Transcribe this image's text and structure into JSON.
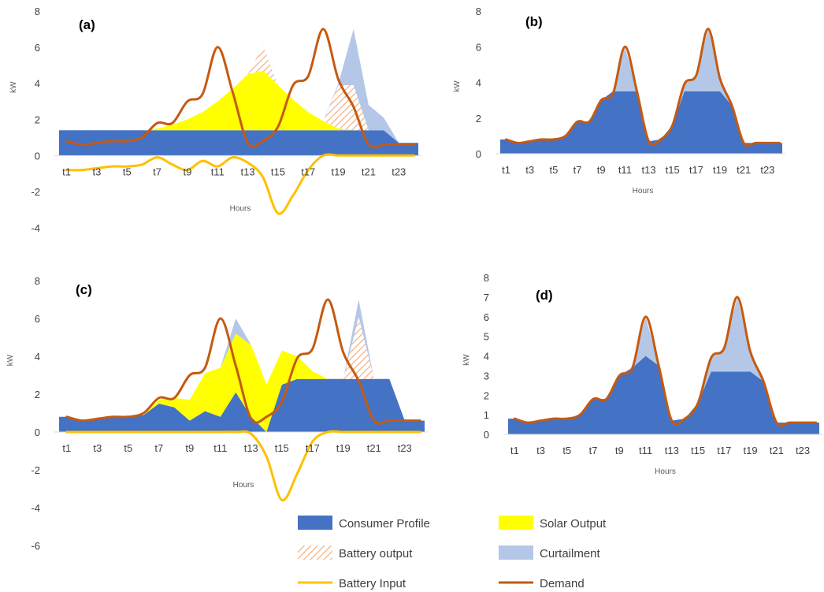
{
  "chart_data": [
    {
      "type": "area",
      "panel_label": "(a)",
      "xlabel": "Hours",
      "ylabel": "kW",
      "ylim": [
        -4,
        8
      ],
      "yticks": [
        -4,
        -2,
        0,
        2,
        4,
        6,
        8
      ],
      "x": [
        1,
        2,
        3,
        4,
        5,
        6,
        7,
        8,
        9,
        10,
        11,
        12,
        13,
        14,
        15,
        16,
        17,
        18,
        19,
        20,
        21,
        22,
        23,
        24
      ],
      "xtick_labels": [
        "t1",
        "t3",
        "t5",
        "t7",
        "t9",
        "t11",
        "t13",
        "t15",
        "t17",
        "t19",
        "t21",
        "t23"
      ],
      "series": [
        {
          "name": "Consumer Profile",
          "values": [
            1.4,
            1.4,
            1.4,
            1.4,
            1.4,
            1.4,
            1.4,
            1.4,
            1.4,
            1.4,
            1.4,
            1.4,
            1.4,
            1.4,
            1.4,
            1.4,
            1.4,
            1.4,
            1.4,
            1.4,
            1.4,
            1.4,
            0.7,
            0.7
          ]
        },
        {
          "name": "Solar Output",
          "values": [
            0,
            0,
            0,
            0,
            0,
            0,
            0.1,
            0.3,
            0.6,
            1.0,
            1.6,
            2.3,
            3.1,
            3.3,
            2.5,
            1.7,
            1.0,
            0.5,
            0.1,
            0,
            0,
            0,
            0,
            0
          ]
        },
        {
          "name": "Battery output",
          "values": [
            0,
            0,
            0,
            0,
            0,
            0,
            0,
            0,
            0,
            0,
            0,
            0,
            0,
            1.4,
            0,
            0,
            0,
            0,
            2.4,
            2.5,
            0,
            0,
            0,
            0
          ]
        },
        {
          "name": "Curtailment",
          "values": [
            0,
            0,
            0,
            0,
            0,
            0,
            0,
            0,
            0,
            0,
            0,
            0,
            0,
            0,
            0,
            0,
            0,
            0,
            0.1,
            3.1,
            1.4,
            0.7,
            0,
            0
          ]
        },
        {
          "name": "Battery Input",
          "values": [
            -0.8,
            -0.8,
            -0.7,
            -0.6,
            -0.6,
            -0.5,
            -0.1,
            -0.5,
            -0.8,
            -0.3,
            -0.6,
            -0.1,
            -0.4,
            -1.2,
            -3.2,
            -2.2,
            -0.8,
            0,
            0,
            0,
            0,
            0,
            0,
            0
          ]
        },
        {
          "name": "Demand",
          "values": [
            0.8,
            0.6,
            0.7,
            0.8,
            0.8,
            1.0,
            1.8,
            1.8,
            3.0,
            3.4,
            6.0,
            3.5,
            0.7,
            0.8,
            1.6,
            3.9,
            4.4,
            7.0,
            4.2,
            2.7,
            0.6,
            0.6,
            0.6,
            0.6
          ]
        }
      ]
    },
    {
      "type": "area",
      "panel_label": "(b)",
      "xlabel": "Hours",
      "ylabel": "kW",
      "ylim": [
        0,
        8
      ],
      "yticks": [
        0,
        2,
        4,
        6,
        8
      ],
      "x": [
        1,
        2,
        3,
        4,
        5,
        6,
        7,
        8,
        9,
        10,
        11,
        12,
        13,
        14,
        15,
        16,
        17,
        18,
        19,
        20,
        21,
        22,
        23,
        24
      ],
      "xtick_labels": [
        "t1",
        "t3",
        "t5",
        "t7",
        "t9",
        "t11",
        "t13",
        "t15",
        "t17",
        "t19",
        "t21",
        "t23"
      ],
      "series": [
        {
          "name": "Consumer Profile",
          "values": [
            0.8,
            0.6,
            0.7,
            0.8,
            0.8,
            1.0,
            1.8,
            1.8,
            3.0,
            3.5,
            3.5,
            3.5,
            0.7,
            0.8,
            1.6,
            3.5,
            3.5,
            3.5,
            3.5,
            2.7,
            0.6,
            0.6,
            0.6,
            0.6
          ]
        },
        {
          "name": "Curtailment",
          "values": [
            0,
            0,
            0,
            0,
            0,
            0,
            0,
            0,
            0,
            0,
            2.5,
            0,
            0,
            0,
            0,
            0.4,
            0.9,
            3.5,
            0.7,
            0,
            0,
            0,
            0,
            0
          ]
        },
        {
          "name": "Demand",
          "values": [
            0.8,
            0.6,
            0.7,
            0.8,
            0.8,
            1.0,
            1.8,
            1.8,
            3.0,
            3.4,
            6.0,
            3.5,
            0.7,
            0.8,
            1.6,
            3.9,
            4.4,
            7.0,
            4.2,
            2.7,
            0.6,
            0.6,
            0.6,
            0.6
          ]
        }
      ]
    },
    {
      "type": "area",
      "panel_label": "(c)",
      "xlabel": "Hours",
      "ylabel": "kW",
      "ylim": [
        -6,
        8
      ],
      "yticks": [
        -6,
        -4,
        -2,
        0,
        2,
        4,
        6,
        8
      ],
      "x": [
        1,
        2,
        3,
        4,
        5,
        6,
        7,
        8,
        9,
        10,
        11,
        12,
        13,
        14,
        15,
        16,
        17,
        18,
        19,
        20,
        21,
        22,
        23,
        24
      ],
      "xtick_labels": [
        "t1",
        "t3",
        "t5",
        "t7",
        "t9",
        "t11",
        "t13",
        "t15",
        "t17",
        "t19",
        "t21",
        "t23"
      ],
      "series": [
        {
          "name": "Consumer Profile",
          "values": [
            0.8,
            0.6,
            0.7,
            0.8,
            0.8,
            0.9,
            1.5,
            1.3,
            0.6,
            1.1,
            0.8,
            2.1,
            0.8,
            0,
            2.5,
            2.8,
            2.8,
            2.8,
            2.8,
            2.8,
            2.8,
            2.8,
            0.6,
            0.6
          ]
        },
        {
          "name": "Solar Output",
          "values": [
            0,
            0,
            0,
            0,
            0,
            0,
            0.2,
            0.5,
            1.1,
            2.0,
            2.6,
            3.1,
            3.8,
            2.5,
            1.8,
            1.2,
            0.4,
            0,
            0,
            0,
            0,
            0,
            0,
            0
          ]
        },
        {
          "name": "Battery output",
          "values": [
            0,
            0,
            0,
            0,
            0,
            0,
            0,
            0,
            0,
            0,
            0,
            0,
            0,
            0,
            0,
            0,
            0,
            0,
            0,
            3.3,
            0,
            0,
            0,
            0
          ]
        },
        {
          "name": "Curtailment",
          "values": [
            0,
            0,
            0,
            0,
            0,
            0,
            0,
            0,
            0,
            0,
            0,
            0.8,
            0,
            0,
            0,
            0,
            0,
            0,
            0,
            0.9,
            0,
            0,
            0,
            0
          ]
        },
        {
          "name": "Battery Input",
          "values": [
            0,
            0,
            0,
            0,
            0,
            0,
            0,
            0,
            0,
            0,
            0,
            0,
            -0.1,
            -1.3,
            -3.6,
            -2.2,
            -0.5,
            0,
            0,
            0,
            0,
            0,
            0,
            0
          ]
        },
        {
          "name": "Demand",
          "values": [
            0.8,
            0.6,
            0.7,
            0.8,
            0.8,
            1.0,
            1.8,
            1.8,
            3.0,
            3.4,
            6.0,
            3.5,
            0.7,
            0.8,
            1.6,
            3.9,
            4.4,
            7.0,
            4.2,
            2.7,
            0.6,
            0.6,
            0.6,
            0.6
          ]
        }
      ]
    },
    {
      "type": "area",
      "panel_label": "(d)",
      "xlabel": "Hours",
      "ylabel": "kW",
      "ylim": [
        0,
        8
      ],
      "yticks": [
        0,
        1,
        2,
        3,
        4,
        5,
        6,
        7,
        8
      ],
      "x": [
        1,
        2,
        3,
        4,
        5,
        6,
        7,
        8,
        9,
        10,
        11,
        12,
        13,
        14,
        15,
        16,
        17,
        18,
        19,
        20,
        21,
        22,
        23,
        24
      ],
      "xtick_labels": [
        "t1",
        "t3",
        "t5",
        "t7",
        "t9",
        "t11",
        "t13",
        "t15",
        "t17",
        "t19",
        "t21",
        "t23"
      ],
      "series": [
        {
          "name": "Consumer Profile",
          "values": [
            0.8,
            0.6,
            0.7,
            0.8,
            0.8,
            1.0,
            1.8,
            1.8,
            3.0,
            3.4,
            4.0,
            3.5,
            0.7,
            0.8,
            1.6,
            3.2,
            3.2,
            3.2,
            3.2,
            2.7,
            0.6,
            0.6,
            0.6,
            0.6
          ]
        },
        {
          "name": "Curtailment",
          "values": [
            0,
            0,
            0,
            0,
            0,
            0,
            0,
            0,
            0,
            0,
            2.0,
            0,
            0,
            0,
            0,
            0.7,
            1.2,
            3.8,
            1.0,
            0,
            0,
            0,
            0,
            0
          ]
        },
        {
          "name": "Demand",
          "values": [
            0.8,
            0.6,
            0.7,
            0.8,
            0.8,
            1.0,
            1.8,
            1.8,
            3.0,
            3.4,
            6.0,
            3.5,
            0.7,
            0.8,
            1.6,
            3.9,
            4.4,
            7.0,
            4.2,
            2.7,
            0.6,
            0.6,
            0.6,
            0.6
          ]
        }
      ]
    }
  ],
  "legend": {
    "position": "bottom-right",
    "items": [
      {
        "label": "Consumer Profile",
        "symbol": "fill",
        "color": "#4472C4"
      },
      {
        "label": "Solar Output",
        "symbol": "fill",
        "color": "#FFFF00"
      },
      {
        "label": "Battery output",
        "symbol": "hatch",
        "color": "#F4B183"
      },
      {
        "label": "Curtailment",
        "symbol": "fill",
        "color": "#B4C7E7"
      },
      {
        "label": "Battery Input",
        "symbol": "line",
        "color": "#FFC000"
      },
      {
        "label": "Demand",
        "symbol": "line",
        "color": "#C55A11"
      }
    ]
  },
  "colors": {
    "consumer_profile": "#4472C4",
    "solar_output": "#FFFF00",
    "battery_output": "#F4B183",
    "curtailment": "#B4C7E7",
    "battery_input": "#FFC000",
    "demand": "#C55A11"
  }
}
